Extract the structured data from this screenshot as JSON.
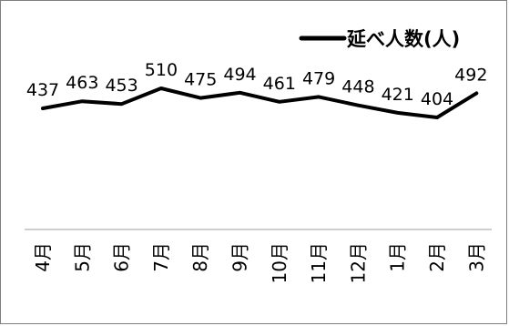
{
  "chart_data": {
    "type": "line",
    "categories": [
      "4月",
      "5月",
      "6月",
      "7月",
      "8月",
      "9月",
      "10月",
      "11月",
      "12月",
      "1月",
      "2月",
      "3月"
    ],
    "series": [
      {
        "name": "延べ人数(人)",
        "values": [
          437,
          463,
          453,
          510,
          475,
          494,
          461,
          479,
          448,
          421,
          404,
          492
        ],
        "color": "#000000"
      }
    ],
    "data_labels": [
      "437",
      "463",
      "453",
      "510",
      "475",
      "494",
      "461",
      "479",
      "448",
      "421",
      "404",
      "492"
    ],
    "legend": {
      "position": "top-right"
    },
    "grid": false,
    "ylim": [
      0,
      1250
    ]
  }
}
